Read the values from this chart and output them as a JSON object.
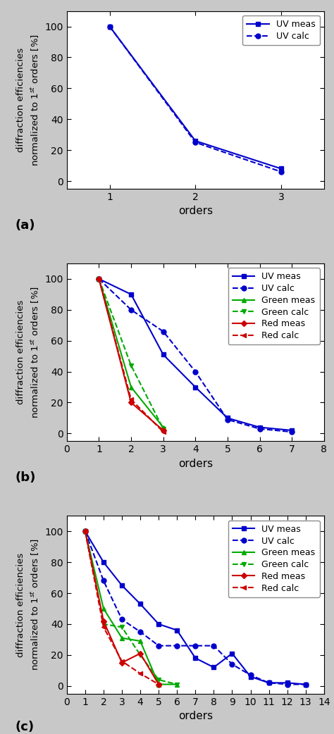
{
  "panel_a": {
    "uv_meas": {
      "x": [
        1,
        2,
        3
      ],
      "y": [
        100,
        26,
        8
      ]
    },
    "uv_calc": {
      "x": [
        1,
        2,
        3
      ],
      "y": [
        100,
        25,
        6
      ]
    },
    "xlim": [
      0.5,
      3.5
    ],
    "xticks": [
      1,
      2,
      3
    ],
    "ylim": [
      -5,
      110
    ],
    "yticks": [
      0,
      20,
      40,
      60,
      80,
      100
    ],
    "label": "(a)"
  },
  "panel_b": {
    "uv_meas": {
      "x": [
        1,
        2,
        3,
        4,
        5,
        6,
        7
      ],
      "y": [
        100,
        90,
        51,
        30,
        10,
        4,
        2
      ]
    },
    "uv_calc": {
      "x": [
        1,
        2,
        3,
        4,
        5,
        6,
        7
      ],
      "y": [
        100,
        80,
        66,
        40,
        9,
        3,
        1
      ]
    },
    "green_meas": {
      "x": [
        1,
        2,
        3
      ],
      "y": [
        100,
        30,
        4
      ]
    },
    "green_calc": {
      "x": [
        1,
        2,
        3
      ],
      "y": [
        100,
        44,
        3
      ]
    },
    "red_meas": {
      "x": [
        1,
        2,
        3
      ],
      "y": [
        100,
        20,
        2
      ]
    },
    "red_calc": {
      "x": [
        1,
        2,
        3
      ],
      "y": [
        100,
        22,
        1
      ]
    },
    "xlim": [
      0,
      8
    ],
    "xticks": [
      0,
      1,
      2,
      3,
      4,
      5,
      6,
      7,
      8
    ],
    "ylim": [
      -5,
      110
    ],
    "yticks": [
      0,
      20,
      40,
      60,
      80,
      100
    ],
    "label": "(b)"
  },
  "panel_c": {
    "uv_meas": {
      "x": [
        1,
        2,
        3,
        4,
        5,
        6,
        7,
        8,
        9,
        10,
        11,
        12,
        13
      ],
      "y": [
        100,
        80,
        65,
        53,
        40,
        36,
        18,
        12,
        21,
        6,
        2,
        2,
        1
      ]
    },
    "uv_calc": {
      "x": [
        1,
        2,
        3,
        4,
        5,
        6,
        7,
        8,
        9,
        10,
        11,
        12,
        13
      ],
      "y": [
        100,
        68,
        43,
        35,
        26,
        26,
        26,
        26,
        14,
        7,
        2,
        1,
        1
      ]
    },
    "green_meas": {
      "x": [
        1,
        2,
        3,
        4,
        5,
        6
      ],
      "y": [
        100,
        50,
        31,
        29,
        1,
        1
      ]
    },
    "green_calc": {
      "x": [
        1,
        2,
        3,
        4,
        5,
        6
      ],
      "y": [
        100,
        40,
        38,
        20,
        4,
        1
      ]
    },
    "red_meas": {
      "x": [
        1,
        2,
        3,
        4,
        5
      ],
      "y": [
        100,
        42,
        15,
        21,
        1
      ]
    },
    "red_calc": {
      "x": [
        1,
        2,
        3,
        4,
        5
      ],
      "y": [
        100,
        38,
        16,
        8,
        1
      ]
    },
    "xlim": [
      0,
      14
    ],
    "xticks": [
      0,
      1,
      2,
      3,
      4,
      5,
      6,
      7,
      8,
      9,
      10,
      11,
      12,
      13,
      14
    ],
    "ylim": [
      -5,
      110
    ],
    "yticks": [
      0,
      20,
      40,
      60,
      80,
      100
    ],
    "label": "(c)"
  },
  "colors": {
    "blue": "#0000CC",
    "green": "#00AA00",
    "red": "#CC0000"
  },
  "bg_color": "#c8c8c8",
  "ylabel": "diffraction efficiencies\nnormalized to 1$^{st}$ orders [%]",
  "xlabel": "orders",
  "figsize": [
    4.74,
    10.42
  ],
  "dpi": 100
}
